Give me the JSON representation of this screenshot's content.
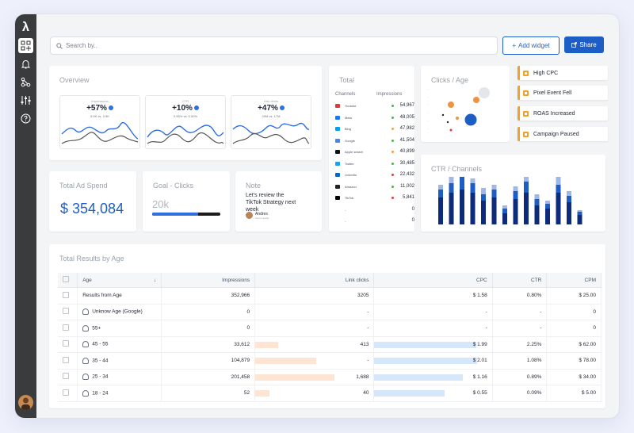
{
  "search": {
    "placeholder": "Search by.."
  },
  "toolbar": {
    "add_widget": "Add widget",
    "share": "Share"
  },
  "overview": {
    "title": "Overview",
    "cards": [
      {
        "label": "Impressions",
        "pct": "+57%",
        "sub": "5.9K vs. 3.5K"
      },
      {
        "label": "CTR",
        "pct": "+10%",
        "sub": "0.55% vs. 0.50%"
      },
      {
        "label": "Link clicks",
        "pct": "+47%",
        "sub": "20M vs. 17M"
      }
    ]
  },
  "total_ad_spend": {
    "title": "Total Ad Spend",
    "value": "$ 354,084"
  },
  "goal": {
    "title": "Goal - Clicks",
    "value": "20k",
    "progress": 0.68
  },
  "note": {
    "title": "Note",
    "text": "Let's review the TikTok Strategy next week",
    "author": "Andres",
    "role": "Team Leader"
  },
  "total": {
    "title": "Total",
    "col_channels": "Channels",
    "col_impressions": "Impressions",
    "rows": [
      {
        "name": "Youtube",
        "value": "54,967",
        "icon_color": "#e53935",
        "dot": "#4caf50"
      },
      {
        "name": "Meta",
        "value": "48,005",
        "icon_color": "#1877f2",
        "dot": "#4caf50"
      },
      {
        "name": "Bing",
        "value": "47,982",
        "icon_color": "#00a1f1",
        "dot": "#f0a12c"
      },
      {
        "name": "Google",
        "value": "41,504",
        "icon_color": "#4285f4",
        "dot": "#4caf50"
      },
      {
        "name": "Apple search",
        "value": "40,899",
        "icon_color": "#111111",
        "dot": "#f0a12c"
      },
      {
        "name": "Twitter",
        "value": "30,485",
        "icon_color": "#1da1f2",
        "dot": "#4caf50"
      },
      {
        "name": "LinkedIn",
        "value": "22,432",
        "icon_color": "#0a66c2",
        "dot": "#e53935"
      },
      {
        "name": "Amazon",
        "value": "11,002",
        "icon_color": "#222222",
        "dot": "#4caf50"
      },
      {
        "name": "TikTok",
        "value": "5,841",
        "icon_color": "#000000",
        "dot": "#e53935"
      },
      {
        "name": "-",
        "value": "0",
        "icon_color": "",
        "dot": ""
      },
      {
        "name": "-",
        "value": "0",
        "icon_color": "",
        "dot": ""
      }
    ]
  },
  "clicks_age": {
    "title": "Clicks / Age"
  },
  "alerts": [
    "High CPC",
    "Pixel Event Fell",
    "ROAS Increased",
    "Campaign Paused"
  ],
  "ctr_channels": {
    "title": "CTR / Channels"
  },
  "results": {
    "title": "Total Results by Age",
    "columns": [
      "Age",
      "Impressions",
      "Link clicks",
      "CPC",
      "CTR",
      "CPM"
    ],
    "rows": [
      {
        "age": "Results from Age",
        "impressions": "352,966",
        "clicks": "3205",
        "cpc": "$ 1.58",
        "ctr": "0.80%",
        "cpm": "$ 25.00",
        "icon": false,
        "clicks_bar": 0,
        "cpc_bar": 0
      },
      {
        "age": "Unknow Age (Google)",
        "impressions": "0",
        "clicks": "-",
        "cpc": "-",
        "ctr": "-",
        "cpm": "0",
        "icon": true,
        "clicks_bar": 0,
        "cpc_bar": 0
      },
      {
        "age": "55+",
        "impressions": "0",
        "clicks": "-",
        "cpc": "-",
        "ctr": "-",
        "cpm": "0",
        "icon": true,
        "clicks_bar": 0,
        "cpc_bar": 0
      },
      {
        "age": "45 - 55",
        "impressions": "33,612",
        "clicks": "413",
        "cpc": "$ 1.99",
        "ctr": "2.25%",
        "cpm": "$ 62.00",
        "icon": true,
        "clicks_bar": 0.27,
        "cpc_bar": 0.99
      },
      {
        "age": "35 - 44",
        "impressions": "104,879",
        "clicks": "-",
        "cpc": "$ 2.01",
        "ctr": "1.08%",
        "cpm": "$ 78.00",
        "icon": true,
        "clicks_bar": 0.73,
        "cpc_bar": 1.0
      },
      {
        "age": "25 - 34",
        "impressions": "201,458",
        "clicks": "1,688",
        "cpc": "$ 1.16",
        "ctr": "0.89%",
        "cpm": "$ 34.00",
        "icon": true,
        "clicks_bar": 0.95,
        "cpc_bar": 0.86
      },
      {
        "age": "18 - 24",
        "impressions": "52",
        "clicks": "40",
        "cpc": "$ 0.55",
        "ctr": "0.09%",
        "cpm": "$ 5.00",
        "icon": true,
        "clicks_bar": 0.17,
        "cpc_bar": 0.68
      }
    ]
  }
}
